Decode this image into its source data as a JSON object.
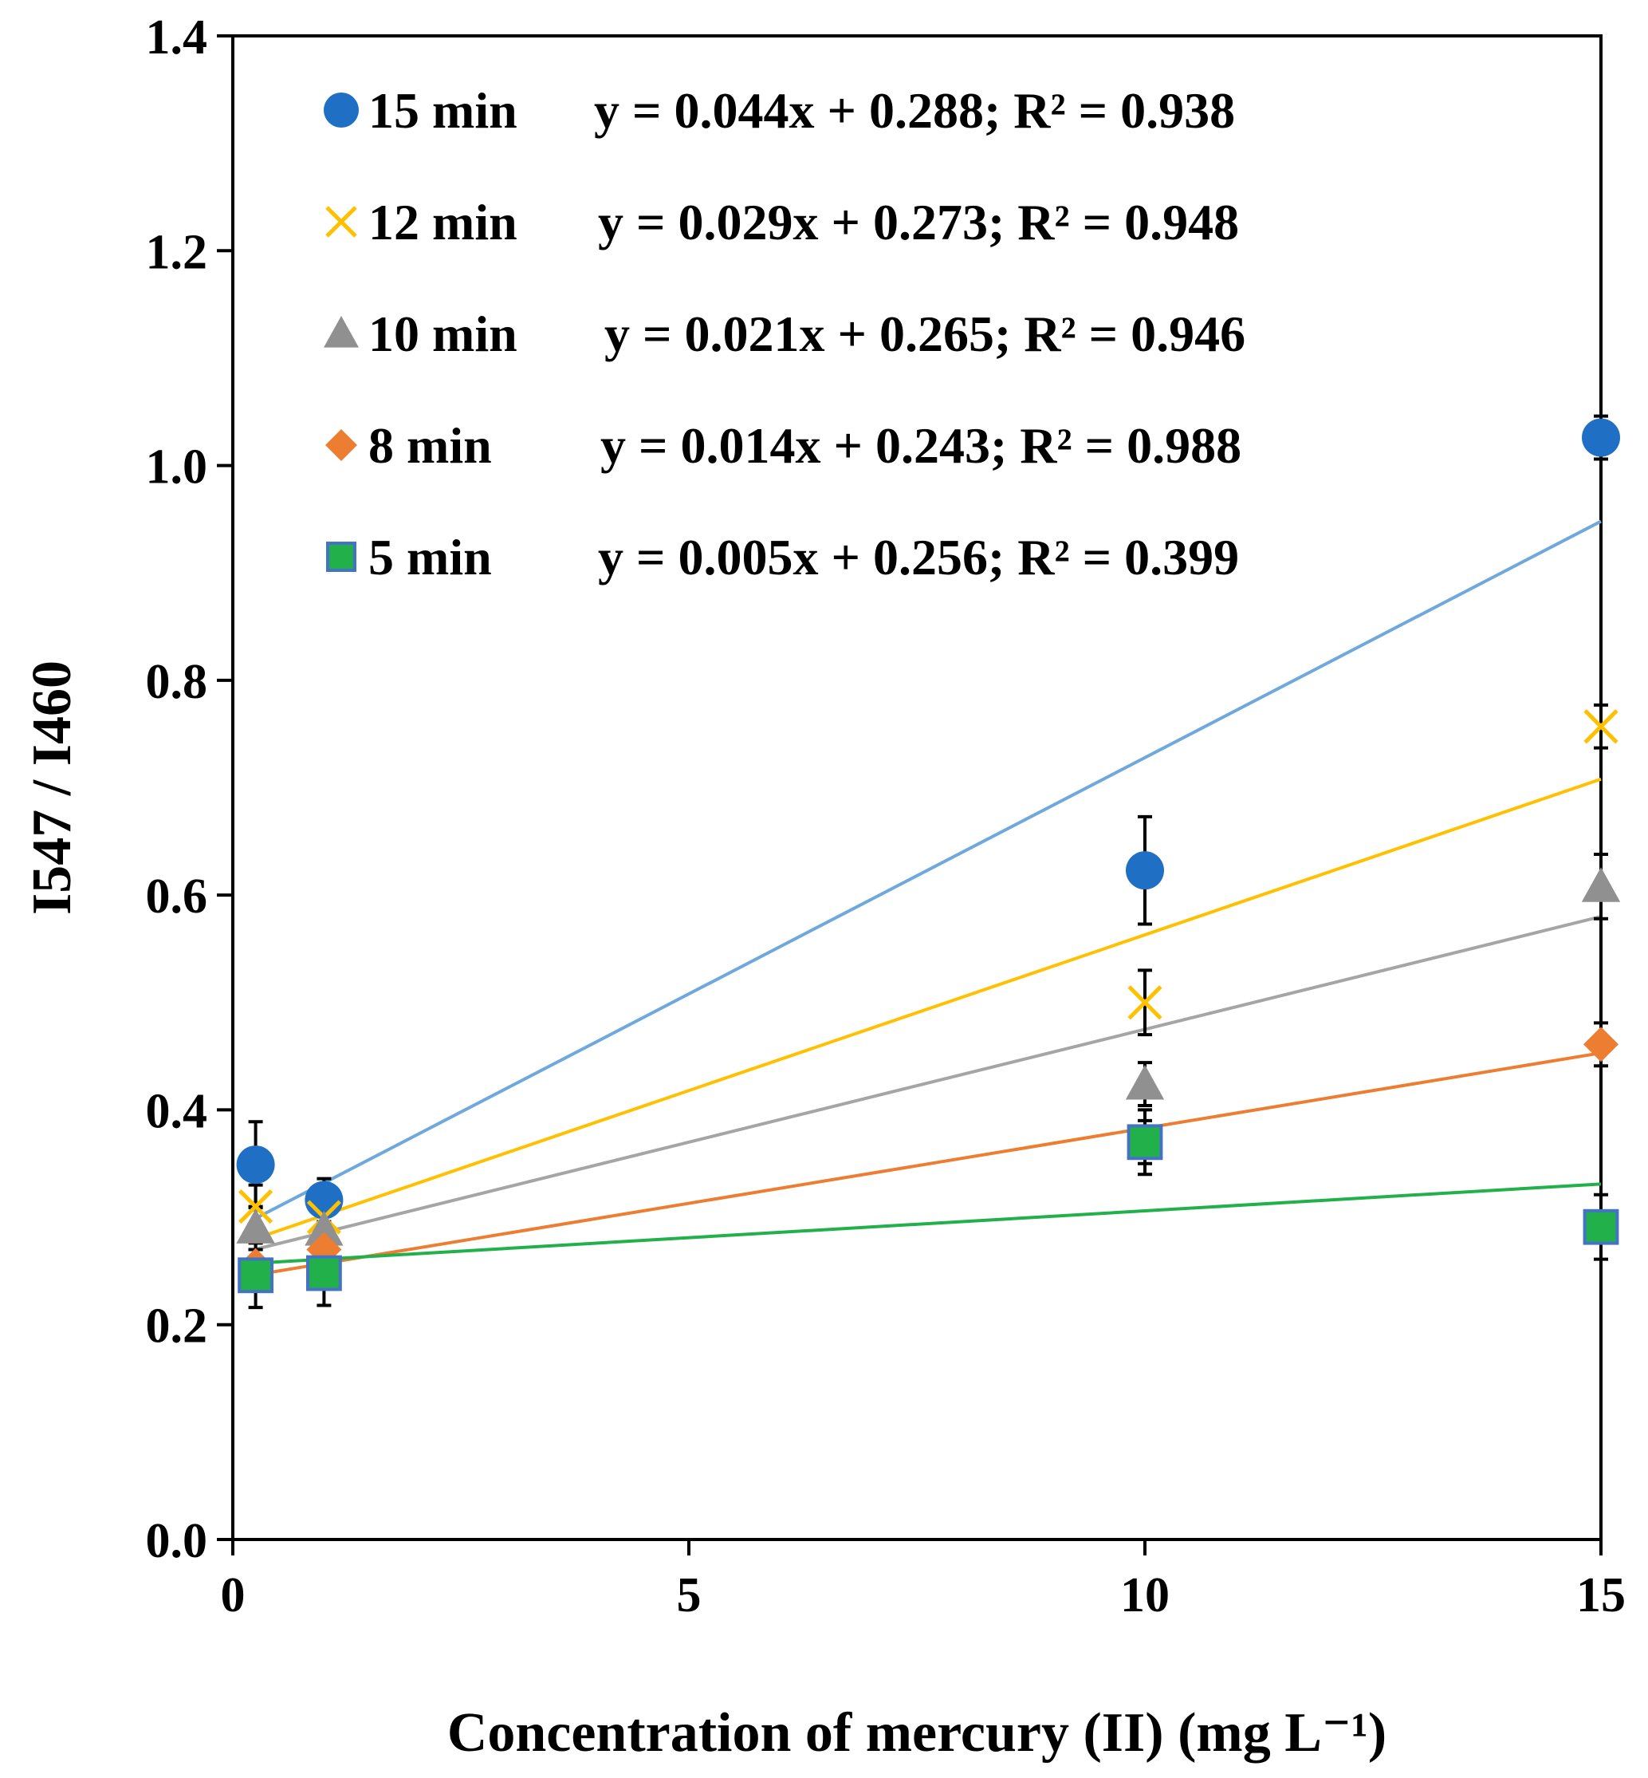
{
  "chart_data": {
    "type": "scatter",
    "title": "",
    "xlabel": "Concentration of mercury (II) (mg L⁻¹)",
    "ylabel": "I547 / I460",
    "xlim": [
      0,
      15
    ],
    "ylim": [
      0,
      1.4
    ],
    "x_ticks": [
      "0",
      "5",
      "10",
      "15"
    ],
    "y_ticks": [
      "0.0",
      "0.2",
      "0.4",
      "0.6",
      "0.8",
      "1.0",
      "1.2",
      "1.4"
    ],
    "legend_position": "top-left",
    "gridlines": false,
    "series": [
      {
        "name": "15 min",
        "marker": "circle",
        "color": "#1f6fc5",
        "trend_color": "#6fa8dc",
        "x": [
          0.25,
          1,
          10,
          15
        ],
        "y": [
          0.349,
          0.316,
          0.623,
          1.026
        ],
        "error": [
          0.04,
          0.02,
          0.05,
          0.02
        ],
        "trendline": {
          "slope": 0.044,
          "intercept": 0.288
        },
        "equation": "y = 0.044x + 0.288; R² = 0.938"
      },
      {
        "name": "12 min",
        "marker": "x",
        "color": "#ffc000",
        "trend_color": "#ffc000",
        "x": [
          0.25,
          1,
          10,
          15
        ],
        "y": [
          0.31,
          0.3,
          0.5,
          0.757
        ],
        "error": [
          0.02,
          0.015,
          0.03,
          0.02
        ],
        "trendline": {
          "slope": 0.029,
          "intercept": 0.273
        },
        "equation": "y = 0.029x + 0.273; R² = 0.948"
      },
      {
        "name": "10 min",
        "marker": "triangle",
        "color": "#909090",
        "trend_color": "#a5a5a5",
        "x": [
          0.25,
          1,
          10,
          15
        ],
        "y": [
          0.29,
          0.288,
          0.424,
          0.608
        ],
        "error": [
          0.02,
          0.015,
          0.02,
          0.03
        ],
        "trendline": {
          "slope": 0.021,
          "intercept": 0.265
        },
        "equation": "y = 0.021x + 0.265; R² = 0.946"
      },
      {
        "name": "8 min",
        "marker": "diamond",
        "color": "#ed7d31",
        "trend_color": "#ed7d31",
        "x": [
          0.25,
          1,
          10,
          15
        ],
        "y": [
          0.255,
          0.27,
          0.37,
          0.461
        ],
        "error": [
          0.015,
          0.015,
          0.02,
          0.02
        ],
        "trendline": {
          "slope": 0.014,
          "intercept": 0.243
        },
        "equation": "y = 0.014x + 0.243; R² = 0.988"
      },
      {
        "name": "5 min",
        "marker": "square",
        "color": "#22b04b",
        "stroke": "#4472c4",
        "trend_color": "#22b04b",
        "x": [
          0.25,
          1,
          10,
          15
        ],
        "y": [
          0.246,
          0.248,
          0.37,
          0.291
        ],
        "error": [
          0.03,
          0.03,
          0.03,
          0.03
        ],
        "trendline": {
          "slope": 0.005,
          "intercept": 0.256
        },
        "equation": "y = 0.005x + 0.256; R² = 0.399"
      }
    ]
  }
}
